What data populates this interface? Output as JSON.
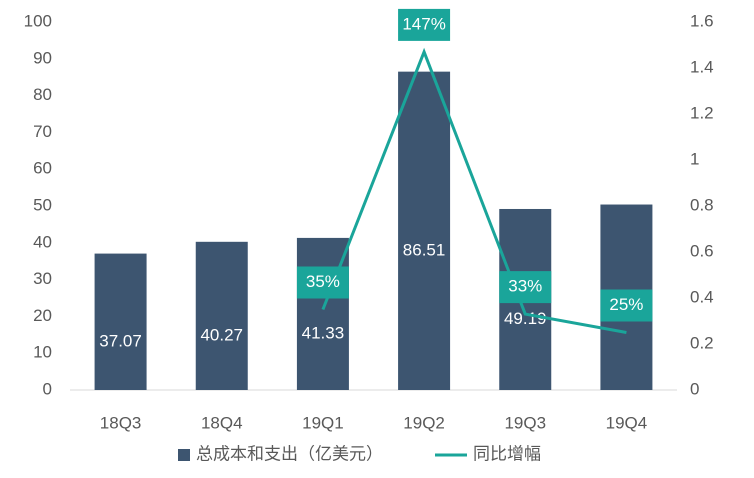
{
  "chart_data": {
    "type": "bar",
    "categories": [
      "18Q3",
      "18Q4",
      "19Q1",
      "19Q2",
      "19Q3",
      "19Q4"
    ],
    "series": [
      {
        "name": "总成本和支出（亿美元）",
        "type": "bar",
        "color": "#3d5570",
        "values": [
          37.07,
          40.27,
          41.33,
          86.51,
          49.19,
          50.4
        ]
      },
      {
        "name": "同比增幅",
        "type": "line",
        "axis": "y2",
        "color": "#1aa59a",
        "values": [
          null,
          null,
          0.35,
          1.47,
          0.33,
          0.25
        ],
        "value_labels": [
          null,
          null,
          "35%",
          "147%",
          "33%",
          "25%"
        ]
      }
    ],
    "ylim": [
      0,
      100
    ],
    "yticks": [
      0,
      10,
      20,
      30,
      40,
      50,
      60,
      70,
      80,
      90,
      100
    ],
    "y2lim": [
      0,
      1.6
    ],
    "y2ticks": [
      0,
      0.2,
      0.4,
      0.6,
      0.8,
      1,
      1.2,
      1.4,
      1.6
    ],
    "grid": false,
    "legend": "bottom"
  }
}
